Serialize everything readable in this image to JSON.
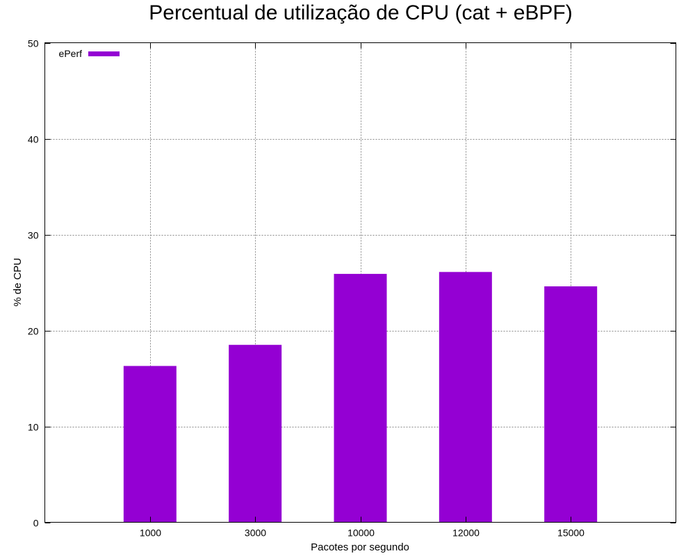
{
  "chart_data": {
    "type": "bar",
    "title": "Percentual de utilização de CPU (cat + eBPF)",
    "xlabel": "Pacotes por segundo",
    "ylabel": "% de CPU",
    "categories": [
      "1000",
      "3000",
      "10000",
      "12000",
      "15000"
    ],
    "series": [
      {
        "name": "ePerf",
        "values": [
          16.3,
          18.5,
          25.9,
          26.1,
          24.6
        ],
        "color": "#9400D3"
      }
    ],
    "ylim": [
      0,
      50
    ],
    "yticks": [
      0,
      10,
      20,
      30,
      40,
      50
    ],
    "grid": true,
    "legend_position": "top-left"
  }
}
